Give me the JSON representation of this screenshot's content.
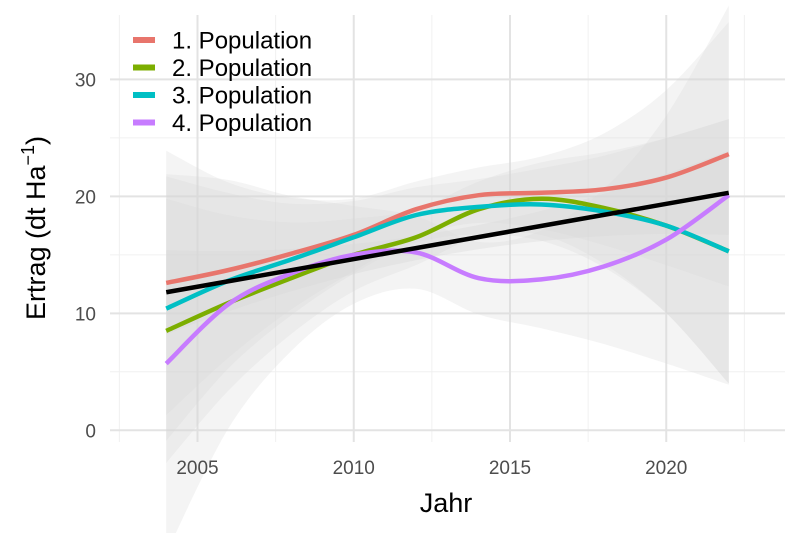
{
  "chart_data": {
    "type": "line",
    "xlabel": "Jahr",
    "ylabel": {
      "prefix": "Ertrag (dt Ha",
      "superscript": "−1",
      "suffix": ")"
    },
    "xlim": [
      2002.2,
      2023.8
    ],
    "ylim": [
      -1.0,
      35.5
    ],
    "x_ticks": [
      2005,
      2010,
      2015,
      2020
    ],
    "y_ticks": [
      0,
      10,
      20,
      30
    ],
    "grid": true,
    "legend_position": "top-left",
    "x": [
      2004,
      2006,
      2008,
      2010,
      2012,
      2014,
      2016,
      2018,
      2020,
      2022
    ],
    "series": [
      {
        "name": "1. Population",
        "color": "#E8756C",
        "values": [
          12.6,
          13.7,
          15.1,
          16.7,
          18.9,
          20.1,
          20.3,
          20.6,
          21.6,
          23.6
        ]
      },
      {
        "name": "2. Population",
        "color": "#7CAE00",
        "values": [
          8.5,
          10.9,
          13.0,
          15.0,
          16.5,
          18.9,
          19.8,
          19.0,
          17.5,
          15.3
        ]
      },
      {
        "name": "3. Population",
        "color": "#00BFC4",
        "values": [
          10.4,
          12.8,
          14.6,
          16.5,
          18.4,
          19.1,
          19.3,
          18.7,
          17.5,
          15.3
        ]
      },
      {
        "name": "4. Population",
        "color": "#C77CFF",
        "values": [
          5.7,
          10.8,
          13.4,
          15.0,
          15.2,
          13.0,
          12.9,
          14.0,
          16.3,
          20.1
        ]
      }
    ],
    "trend": {
      "color": "#000000",
      "values": [
        11.8,
        20.3
      ]
    },
    "confidence_band_color": "#d8d8d8"
  }
}
